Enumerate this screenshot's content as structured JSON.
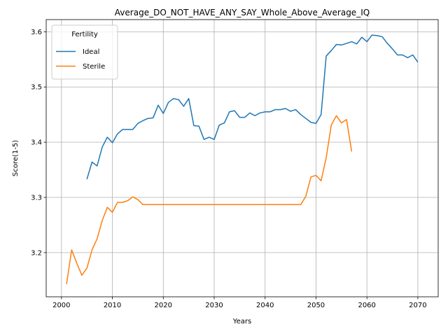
{
  "chart_data": {
    "type": "line",
    "title": "Average_DO_NOT_HAVE_ANY_SAY_Whole_Above_Average_IQ",
    "xlabel": "Years",
    "ylabel": "Score(1-5)",
    "xlim": [
      1997,
      2074
    ],
    "ylim": [
      3.12,
      3.622
    ],
    "xticks": [
      2000,
      2010,
      2020,
      2030,
      2040,
      2050,
      2060,
      2070
    ],
    "yticks": [
      3.2,
      3.3,
      3.4,
      3.5,
      3.6
    ],
    "xtick_labels": [
      "2000",
      "2010",
      "2020",
      "2030",
      "2040",
      "2050",
      "2060",
      "2070"
    ],
    "ytick_labels": [
      "3.2",
      "3.3",
      "3.4",
      "3.5",
      "3.6"
    ],
    "grid": true,
    "legend": {
      "title": "Fertility",
      "placement": "top-left"
    },
    "series": [
      {
        "name": "Ideal",
        "color": "#1f77b4",
        "x": [
          2005,
          2006,
          2007,
          2008,
          2009,
          2010,
          2011,
          2012,
          2013,
          2014,
          2015,
          2016,
          2017,
          2018,
          2019,
          2020,
          2021,
          2022,
          2023,
          2024,
          2025,
          2026,
          2027,
          2028,
          2029,
          2030,
          2031,
          2032,
          2033,
          2034,
          2035,
          2036,
          2037,
          2038,
          2039,
          2040,
          2041,
          2042,
          2043,
          2044,
          2045,
          2046,
          2047,
          2048,
          2049,
          2050,
          2051,
          2052,
          2053,
          2054,
          2055,
          2056,
          2057,
          2058,
          2059,
          2060,
          2061,
          2062,
          2063,
          2064,
          2065,
          2066,
          2067,
          2068,
          2069,
          2070
        ],
        "y": [
          3.333,
          3.364,
          3.357,
          3.391,
          3.409,
          3.399,
          3.415,
          3.423,
          3.423,
          3.423,
          3.434,
          3.439,
          3.443,
          3.444,
          3.467,
          3.452,
          3.472,
          3.479,
          3.477,
          3.465,
          3.479,
          3.43,
          3.429,
          3.405,
          3.409,
          3.405,
          3.431,
          3.435,
          3.455,
          3.457,
          3.445,
          3.445,
          3.453,
          3.448,
          3.453,
          3.455,
          3.455,
          3.459,
          3.459,
          3.461,
          3.456,
          3.459,
          3.45,
          3.443,
          3.436,
          3.434,
          3.45,
          3.556,
          3.566,
          3.577,
          3.576,
          3.579,
          3.582,
          3.578,
          3.59,
          3.582,
          3.594,
          3.593,
          3.591,
          3.579,
          3.569,
          3.558,
          3.558,
          3.553,
          3.558,
          3.545
        ]
      },
      {
        "name": "Sterile",
        "color": "#ff7f0e",
        "x": [
          2001,
          2002,
          2003,
          2004,
          2005,
          2006,
          2007,
          2008,
          2009,
          2010,
          2011,
          2012,
          2013,
          2014,
          2015,
          2016,
          2017,
          2018,
          2019,
          2020,
          2021,
          2022,
          2023,
          2024,
          2025,
          2026,
          2027,
          2028,
          2029,
          2030,
          2031,
          2032,
          2033,
          2034,
          2035,
          2036,
          2037,
          2038,
          2039,
          2040,
          2041,
          2042,
          2043,
          2044,
          2045,
          2046,
          2047,
          2048,
          2049,
          2050,
          2051,
          2052,
          2053,
          2054,
          2055,
          2056,
          2057
        ],
        "y": [
          3.143,
          3.205,
          3.181,
          3.159,
          3.172,
          3.205,
          3.225,
          3.258,
          3.282,
          3.273,
          3.291,
          3.291,
          3.294,
          3.301,
          3.296,
          3.287,
          3.287,
          3.287,
          3.287,
          3.287,
          3.287,
          3.287,
          3.287,
          3.287,
          3.287,
          3.287,
          3.287,
          3.287,
          3.287,
          3.287,
          3.287,
          3.287,
          3.287,
          3.287,
          3.287,
          3.287,
          3.287,
          3.287,
          3.287,
          3.287,
          3.287,
          3.287,
          3.287,
          3.287,
          3.287,
          3.287,
          3.287,
          3.302,
          3.337,
          3.34,
          3.33,
          3.372,
          3.431,
          3.448,
          3.435,
          3.441,
          3.383
        ]
      }
    ]
  }
}
